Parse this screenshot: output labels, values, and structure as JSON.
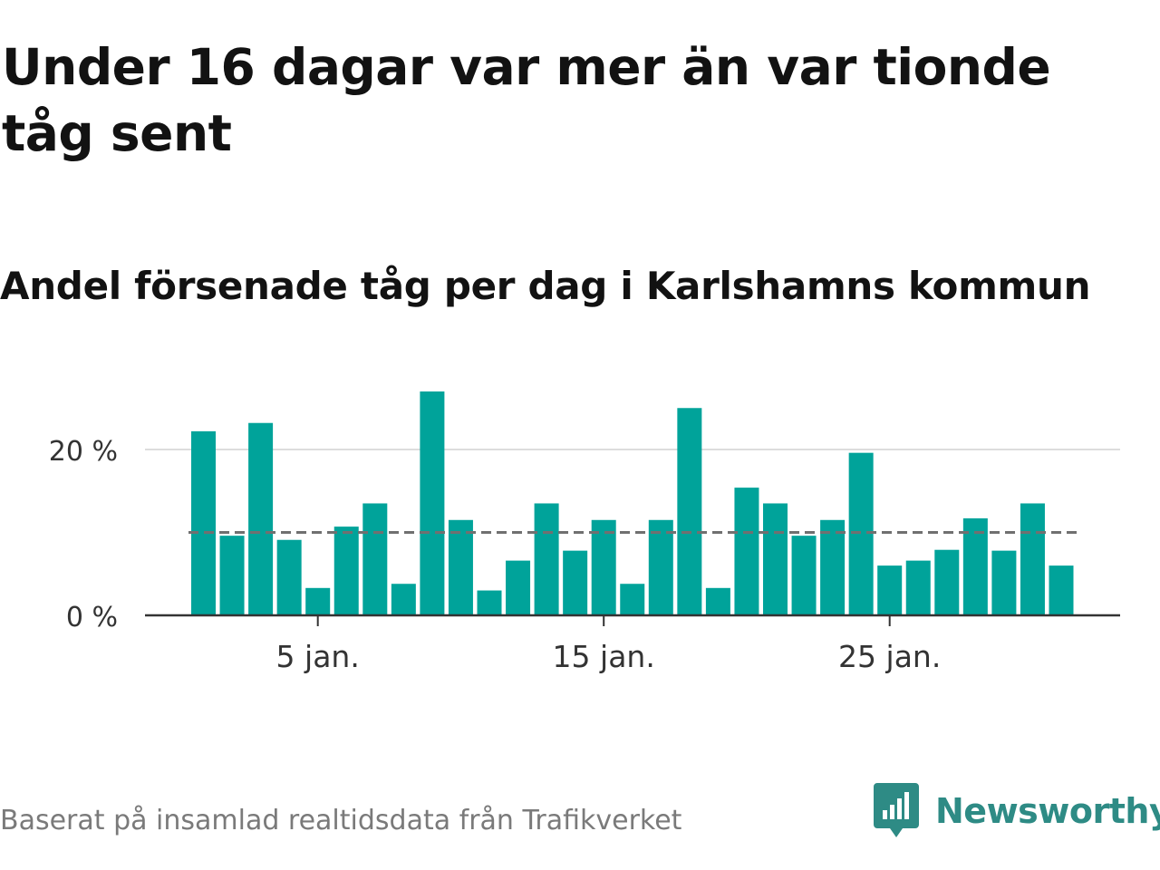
{
  "title": "Under 16 dagar var mer än var tionde tåg sent",
  "subtitle": "Andel försenade tåg per dag i Karlshamns kommun",
  "source": "Baserat på insamlad realtidsdata från Trafikverket",
  "brand": {
    "name": "Newsworthy",
    "icon": "newsworthy-logo-icon",
    "color": "#2e8b85"
  },
  "colors": {
    "bar": "#00a39a",
    "grid": "#dddddd",
    "axis": "#333333",
    "reference": "#707070"
  },
  "chart_data": {
    "type": "bar",
    "title": "Andel försenade tåg per dag i Karlshamns kommun",
    "xlabel": "",
    "ylabel": "",
    "categories": [
      "1 jan.",
      "2 jan.",
      "3 jan.",
      "4 jan.",
      "5 jan.",
      "6 jan.",
      "7 jan.",
      "8 jan.",
      "9 jan.",
      "10 jan.",
      "11 jan.",
      "12 jan.",
      "13 jan.",
      "14 jan.",
      "15 jan.",
      "16 jan.",
      "17 jan.",
      "18 jan.",
      "19 jan.",
      "20 jan.",
      "21 jan.",
      "22 jan.",
      "23 jan.",
      "24 jan.",
      "25 jan.",
      "26 jan.",
      "27 jan.",
      "28 jan.",
      "29 jan.",
      "30 jan.",
      "31 jan."
    ],
    "values": [
      22.2,
      9.6,
      23.2,
      9.1,
      3.3,
      10.7,
      13.5,
      3.8,
      27.0,
      11.5,
      3.0,
      6.6,
      13.5,
      7.8,
      11.5,
      3.8,
      11.5,
      25.0,
      3.3,
      15.4,
      13.5,
      9.6,
      11.5,
      19.6,
      6.0,
      6.6,
      7.9,
      11.7,
      7.8,
      13.5,
      6.0
    ],
    "reference_line": {
      "value": 10
    },
    "yticks": [
      0,
      20
    ],
    "ytick_labels": [
      "0 %",
      "20 %"
    ],
    "xticks": [
      "5 jan.",
      "15 jan.",
      "25 jan."
    ],
    "ylim": [
      0,
      28
    ],
    "grid": true
  }
}
